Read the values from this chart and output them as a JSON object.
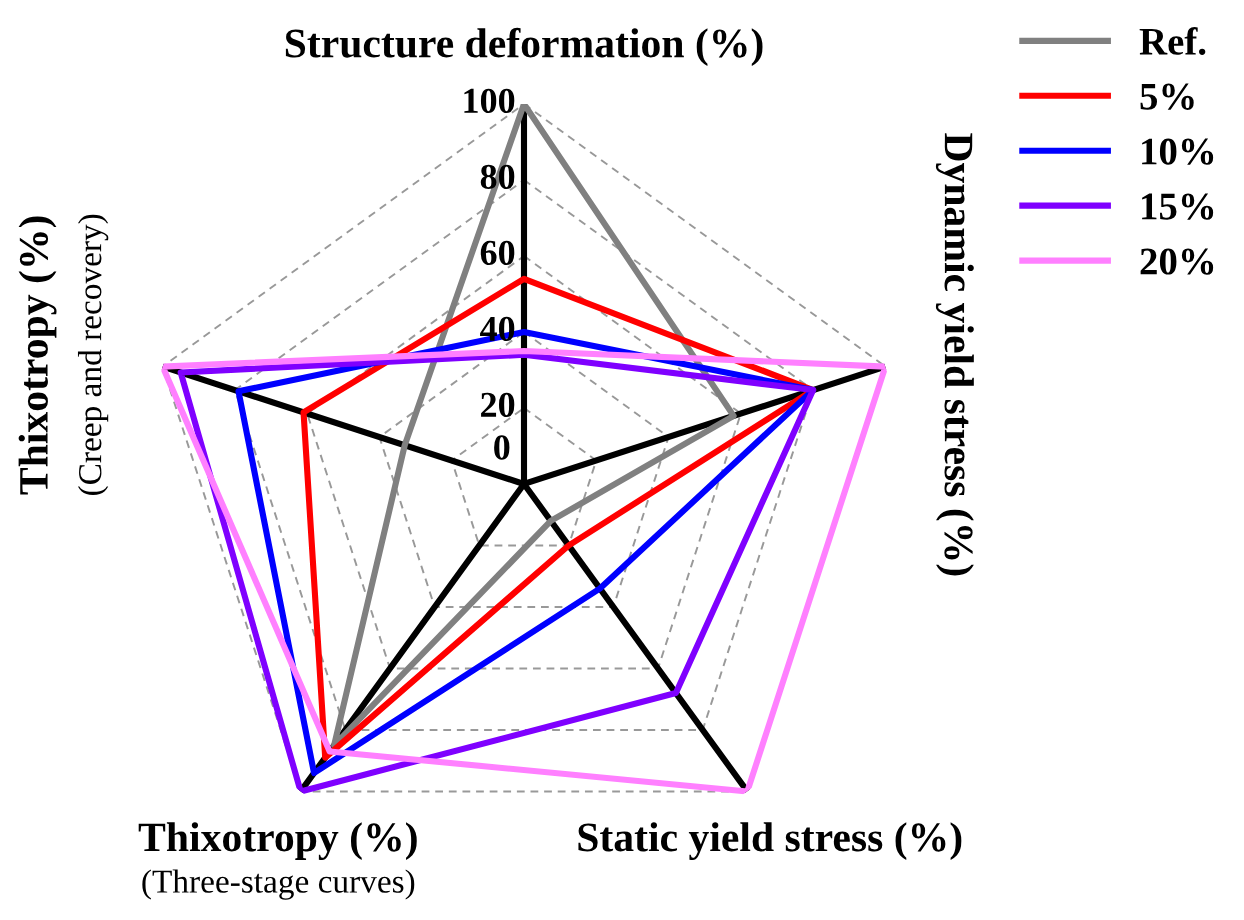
{
  "chart_data": {
    "type": "radar",
    "categories": [
      "Structure deformation (%)",
      "Dynamic yield stress (%)",
      "Static yield stress (%)",
      "Thixotropy (%)\n(Three-stage curves)",
      "Thixotropy (%)\n(Creep and recovery)"
    ],
    "series": [
      {
        "name": "Ref.",
        "color": "#808080",
        "values": [
          100,
          58,
          12,
          85,
          33
        ]
      },
      {
        "name": "5%",
        "color": "#ff0000",
        "values": [
          54,
          80,
          20,
          89,
          61
        ]
      },
      {
        "name": "10%",
        "color": "#0000ff",
        "values": [
          40,
          80,
          34,
          94,
          79
        ]
      },
      {
        "name": "15%",
        "color": "#7f00ff",
        "values": [
          34,
          80,
          68,
          100,
          95
        ]
      },
      {
        "name": "20%",
        "color": "#ff80ff",
        "values": [
          35,
          100,
          100,
          87,
          100
        ]
      }
    ],
    "ylim": [
      0,
      100
    ],
    "yticks": [
      0,
      20,
      40,
      60,
      80,
      100
    ],
    "grid": true,
    "legend": "top right"
  }
}
